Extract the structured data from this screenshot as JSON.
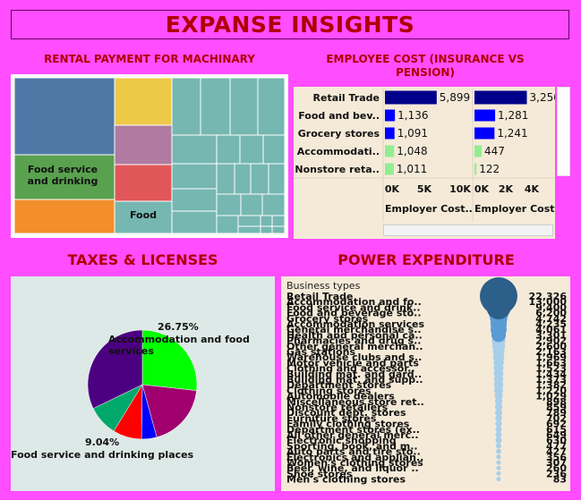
{
  "header": {
    "title": "EXPANSE INSIGHTS"
  },
  "sections": {
    "rental": "RENTAL PAYMENT FOR MACHINARY",
    "employee": "EMPLOYEE COST (INSURANCE VS PENSION)",
    "taxes": "TAXES  & LICENSES",
    "power": "POWER EXPENDITURE"
  },
  "colors": {
    "page_bg": "#ff4dff",
    "title_red": "#b00000",
    "teal": "#76b7b2"
  },
  "chart_data": [
    {
      "type": "treemap",
      "title": "RENTAL PAYMENT FOR MACHINARY",
      "visible_labels": [
        "Food service and drinking",
        "Food"
      ],
      "cells": [
        {
          "label": "",
          "color": "#4e79a7"
        },
        {
          "label": "Food service and drinking",
          "color": "#59a14f"
        },
        {
          "label": "",
          "color": "#f28e2b"
        },
        {
          "label": "",
          "color": "#edc948"
        },
        {
          "label": "",
          "color": "#b07aa1"
        },
        {
          "label": "",
          "color": "#e15759"
        },
        {
          "label": "Food",
          "color": "#76b7b2"
        }
      ]
    },
    {
      "type": "bar",
      "title": "EMPLOYEE COST (INSURANCE VS PENSION)",
      "categories": [
        "Retail Trade",
        "Food and bev..",
        "Grocery stores",
        "Accommodati..",
        "Nonstore reta.."
      ],
      "series": [
        {
          "name": "Employer Cost..",
          "values": [
            5899,
            1136,
            1091,
            1048,
            1011
          ],
          "ticks": [
            "0K",
            "5K",
            "10K"
          ],
          "max": 10000
        },
        {
          "name": "Employer Cost",
          "values": [
            3250,
            1281,
            1241,
            447,
            122
          ],
          "ticks": [
            "0K",
            "2K",
            "4K"
          ],
          "max": 5000
        }
      ],
      "value_labels": [
        [
          "5,899",
          "1,136",
          "1,091",
          "1,048",
          "1,011"
        ],
        [
          "3,250",
          "1,281",
          "1,241",
          "447",
          "122"
        ]
      ]
    },
    {
      "type": "pie",
      "title": "TAXES  & LICENSES",
      "slices": [
        {
          "label": "Accommodation and food services",
          "value": 26.75,
          "color": "#00ff00"
        },
        {
          "label": "",
          "value": 19.0,
          "color": "#a0006e"
        },
        {
          "label": "",
          "value": 4.5,
          "color": "#0000ff"
        },
        {
          "label": "",
          "value": 8.5,
          "color": "#ff0000"
        },
        {
          "label": "Food service and drinking places",
          "value": 9.04,
          "color": "#00a86b"
        },
        {
          "label": "",
          "value": 32.21,
          "color": "#4b0082"
        }
      ],
      "pct_labels": [
        "26.75%",
        "9.04%"
      ]
    },
    {
      "type": "bar",
      "title": "POWER EXPENDITURE",
      "header_label": "Business types",
      "categories": [
        "Retail Trade",
        "Accommodation and fo..",
        "Food service and drink..",
        "Food and beverage sto..",
        "Grocery stores",
        "Accommodation services",
        "General merchandise s..",
        "Health and personal ca..",
        "Pharmacies and drug s..",
        "Other general merchan..",
        "Gas stations",
        "Warehouse clubs and s..",
        "Motor vehicle and parts",
        "Clothing and accessor..",
        "Building mat. and gard..",
        "Building mat. and supp..",
        "Department stores",
        "Clothing stores",
        "Automobile dealers",
        "Miscellaneous store ret..",
        "Nonstore retailers",
        "Discount dept. stores",
        "Furniture stores",
        "Family clothing stores",
        "Department stores (ex..",
        "All other general merc..",
        "Electronic shopping",
        "Sporting, book, and m..",
        "Auto parts and tire sto..",
        "Electronics and applian..",
        "Women's clothing stores",
        "Beer, wine, and liquor ..",
        "Shoe stores",
        "Men's clothing stores"
      ],
      "values": [
        22326,
        13000,
        9400,
        6200,
        4742,
        4235,
        4061,
        3301,
        2902,
        2600,
        2163,
        1969,
        1663,
        1523,
        1434,
        1373,
        1382,
        1220,
        1029,
        898,
        859,
        789,
        702,
        692,
        615,
        649,
        630,
        477,
        427,
        356,
        307,
        260,
        236,
        83
      ],
      "value_labels": [
        "22,326",
        "13,000",
        "9,400",
        "6,200",
        "4,742",
        "4,235",
        "4,061",
        "3,301",
        "2,902",
        "2,600",
        "2,163",
        "1,969",
        "1,663",
        "1,523",
        "1,434",
        "1,373",
        "1,382",
        "1,220",
        "1,029",
        "898",
        "859",
        "789",
        "702",
        "692",
        "615",
        "649",
        "630",
        "477",
        "427",
        "356",
        "307",
        "260",
        "236",
        "83"
      ]
    }
  ]
}
